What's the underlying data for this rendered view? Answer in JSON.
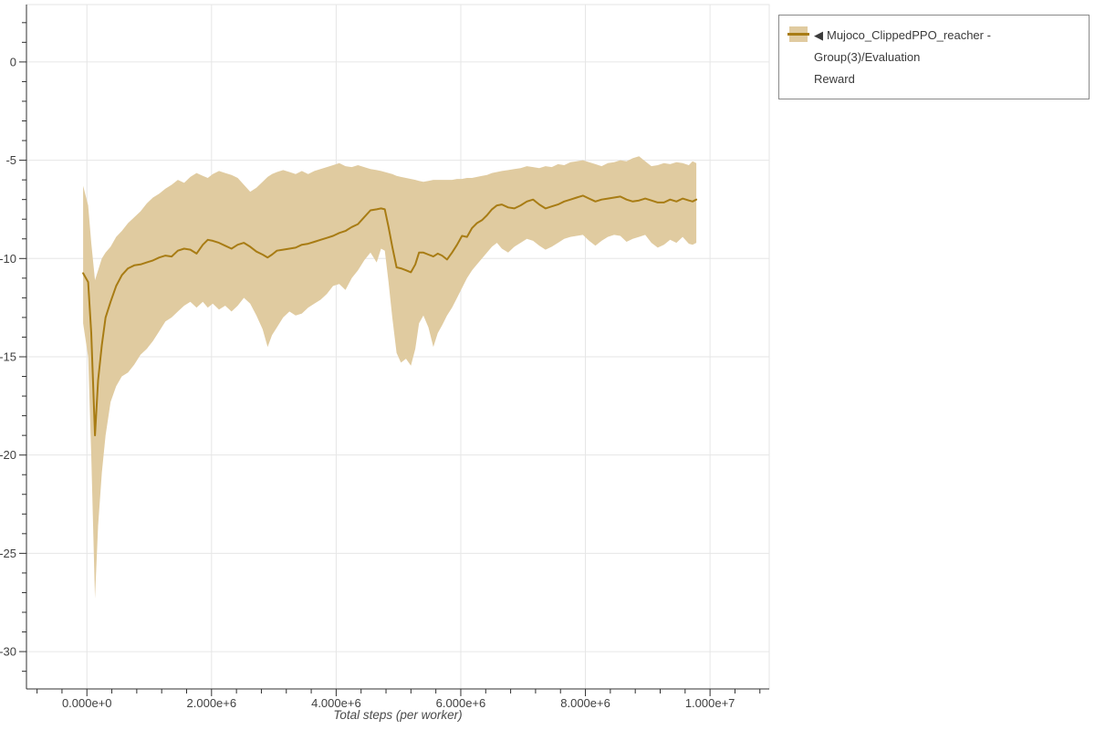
{
  "legend": {
    "toggle_glyph": "◀",
    "label": "Mujoco_ClippedPPO_reacher - Group(3)/Evaluation Reward",
    "label_line1": "Mujoco_ClippedPPO_reacher - Group(3)/Evaluation",
    "label_line2": "Reward"
  },
  "style": {
    "line_color": "#a87c14",
    "band_color": "#e0cba0",
    "grid_color": "#e6e6e6",
    "axis_color": "#303030",
    "tick_label_color": "#3f3f3f",
    "axis_label_color": "#4a4a4a",
    "legend_border_color": "#8a8a8a",
    "legend_text_color": "#3a3a3a",
    "background": "#ffffff"
  },
  "chart_data": {
    "type": "line",
    "title": "",
    "xlabel": "Total steps (per worker)",
    "ylabel": "",
    "legend_position": "top-right-outside",
    "grid": true,
    "series_name": "Mujoco_ClippedPPO_reacher - Group(3)/Evaluation Reward",
    "band_meaning": "min-max / std band around mean evaluation reward",
    "x_axis": {
      "range": [
        -970000,
        10950000
      ],
      "major_step": 2000000,
      "minor_step": 400000,
      "major_ticks": [
        {
          "value": 0,
          "label": "0.000e+0"
        },
        {
          "value": 2000000,
          "label": "2.000e+6"
        },
        {
          "value": 4000000,
          "label": "4.000e+6"
        },
        {
          "value": 6000000,
          "label": "6.000e+6"
        },
        {
          "value": 8000000,
          "label": "8.000e+6"
        },
        {
          "value": 10000000,
          "label": "1.000e+7"
        }
      ]
    },
    "y_axis": {
      "range": [
        -31.9,
        2.92
      ],
      "major_step": 5,
      "minor_step": 1,
      "major_ticks": [
        {
          "value": 0,
          "label": "0"
        },
        {
          "value": -5,
          "label": "-5"
        },
        {
          "value": -10,
          "label": "-10"
        },
        {
          "value": -15,
          "label": "-15"
        },
        {
          "value": -20,
          "label": "-20"
        },
        {
          "value": -25,
          "label": "-25"
        },
        {
          "value": -30,
          "label": "-30"
        }
      ]
    },
    "points_format": [
      "x_million_steps",
      "mean",
      "band_low",
      "band_high"
    ],
    "points": [
      [
        -0.06,
        -10.75,
        -13.3,
        -6.3
      ],
      [
        0.02,
        -11.2,
        -15.0,
        -7.3
      ],
      [
        0.07,
        -13.8,
        -20.0,
        -9.2
      ],
      [
        0.13,
        -19.0,
        -27.3,
        -11.1
      ],
      [
        0.18,
        -16.2,
        -23.6,
        -10.6
      ],
      [
        0.24,
        -14.4,
        -20.9,
        -10.0
      ],
      [
        0.3,
        -13.0,
        -19.0,
        -9.7
      ],
      [
        0.38,
        -12.2,
        -17.3,
        -9.4
      ],
      [
        0.47,
        -11.4,
        -16.5,
        -8.9
      ],
      [
        0.56,
        -10.85,
        -16.0,
        -8.6
      ],
      [
        0.66,
        -10.5,
        -15.8,
        -8.2
      ],
      [
        0.76,
        -10.35,
        -15.4,
        -7.9
      ],
      [
        0.86,
        -10.3,
        -14.9,
        -7.6
      ],
      [
        0.96,
        -10.2,
        -14.6,
        -7.2
      ],
      [
        1.06,
        -10.1,
        -14.2,
        -6.9
      ],
      [
        1.16,
        -9.95,
        -13.7,
        -6.7
      ],
      [
        1.26,
        -9.85,
        -13.2,
        -6.45
      ],
      [
        1.36,
        -9.9,
        -13.0,
        -6.25
      ],
      [
        1.46,
        -9.6,
        -12.7,
        -6.0
      ],
      [
        1.56,
        -9.5,
        -12.4,
        -6.15
      ],
      [
        1.66,
        -9.55,
        -12.2,
        -5.85
      ],
      [
        1.76,
        -9.75,
        -12.5,
        -5.65
      ],
      [
        1.86,
        -9.3,
        -12.2,
        -5.8
      ],
      [
        1.94,
        -9.05,
        -12.5,
        -5.9
      ],
      [
        2.02,
        -9.1,
        -12.3,
        -5.7
      ],
      [
        2.12,
        -9.2,
        -12.6,
        -5.55
      ],
      [
        2.22,
        -9.35,
        -12.4,
        -5.65
      ],
      [
        2.32,
        -9.5,
        -12.7,
        -5.75
      ],
      [
        2.42,
        -9.3,
        -12.4,
        -5.9
      ],
      [
        2.52,
        -9.2,
        -12.0,
        -6.25
      ],
      [
        2.62,
        -9.4,
        -12.3,
        -6.6
      ],
      [
        2.72,
        -9.65,
        -12.9,
        -6.4
      ],
      [
        2.82,
        -9.8,
        -13.6,
        -6.1
      ],
      [
        2.9,
        -9.95,
        -14.5,
        -5.85
      ],
      [
        2.97,
        -9.8,
        -13.9,
        -5.7
      ],
      [
        3.05,
        -9.6,
        -13.5,
        -5.6
      ],
      [
        3.15,
        -9.55,
        -13.0,
        -5.5
      ],
      [
        3.25,
        -9.5,
        -12.7,
        -5.6
      ],
      [
        3.35,
        -9.45,
        -12.9,
        -5.7
      ],
      [
        3.45,
        -9.3,
        -12.8,
        -5.55
      ],
      [
        3.55,
        -9.25,
        -12.5,
        -5.7
      ],
      [
        3.65,
        -9.15,
        -12.3,
        -5.55
      ],
      [
        3.75,
        -9.05,
        -12.1,
        -5.45
      ],
      [
        3.85,
        -8.95,
        -11.8,
        -5.35
      ],
      [
        3.95,
        -8.85,
        -11.4,
        -5.25
      ],
      [
        4.05,
        -8.7,
        -11.3,
        -5.15
      ],
      [
        4.15,
        -8.6,
        -11.6,
        -5.3
      ],
      [
        4.25,
        -8.4,
        -11.0,
        -5.35
      ],
      [
        4.35,
        -8.25,
        -10.6,
        -5.25
      ],
      [
        4.45,
        -7.9,
        -10.1,
        -5.35
      ],
      [
        4.55,
        -7.55,
        -9.7,
        -5.45
      ],
      [
        4.65,
        -7.5,
        -10.2,
        -5.5
      ],
      [
        4.72,
        -7.45,
        -9.5,
        -5.55
      ],
      [
        4.78,
        -7.5,
        -9.6,
        -5.6
      ],
      [
        4.84,
        -8.4,
        -11.2,
        -5.65
      ],
      [
        4.9,
        -9.4,
        -13.0,
        -5.7
      ],
      [
        4.97,
        -10.45,
        -14.8,
        -5.8
      ],
      [
        5.04,
        -10.5,
        -15.3,
        -5.85
      ],
      [
        5.12,
        -10.6,
        -15.1,
        -5.9
      ],
      [
        5.2,
        -10.7,
        -15.45,
        -5.95
      ],
      [
        5.27,
        -10.3,
        -14.6,
        -6.0
      ],
      [
        5.33,
        -9.7,
        -13.3,
        -6.05
      ],
      [
        5.4,
        -9.7,
        -12.9,
        -6.1
      ],
      [
        5.48,
        -9.8,
        -13.5,
        -6.05
      ],
      [
        5.56,
        -9.9,
        -14.5,
        -6.0
      ],
      [
        5.63,
        -9.75,
        -13.8,
        -6.0
      ],
      [
        5.7,
        -9.85,
        -13.4,
        -6.0
      ],
      [
        5.78,
        -10.05,
        -12.9,
        -6.0
      ],
      [
        5.86,
        -9.7,
        -12.5,
        -6.0
      ],
      [
        5.94,
        -9.3,
        -12.0,
        -5.95
      ],
      [
        6.02,
        -8.85,
        -11.5,
        -5.95
      ],
      [
        6.1,
        -8.9,
        -11.0,
        -5.9
      ],
      [
        6.18,
        -8.45,
        -10.6,
        -5.9
      ],
      [
        6.26,
        -8.2,
        -10.3,
        -5.85
      ],
      [
        6.34,
        -8.05,
        -10.0,
        -5.8
      ],
      [
        6.42,
        -7.8,
        -9.7,
        -5.75
      ],
      [
        6.5,
        -7.5,
        -9.4,
        -5.65
      ],
      [
        6.58,
        -7.3,
        -9.2,
        -5.6
      ],
      [
        6.66,
        -7.25,
        -9.5,
        -5.55
      ],
      [
        6.76,
        -7.4,
        -9.7,
        -5.5
      ],
      [
        6.86,
        -7.45,
        -9.4,
        -5.45
      ],
      [
        6.96,
        -7.3,
        -9.2,
        -5.4
      ],
      [
        7.06,
        -7.1,
        -9.0,
        -5.3
      ],
      [
        7.16,
        -7.0,
        -9.1,
        -5.35
      ],
      [
        7.26,
        -7.25,
        -9.35,
        -5.4
      ],
      [
        7.36,
        -7.45,
        -9.55,
        -5.3
      ],
      [
        7.46,
        -7.35,
        -9.4,
        -5.35
      ],
      [
        7.56,
        -7.25,
        -9.2,
        -5.2
      ],
      [
        7.66,
        -7.1,
        -9.0,
        -5.25
      ],
      [
        7.76,
        -7.0,
        -8.9,
        -5.1
      ],
      [
        7.86,
        -6.9,
        -8.85,
        -5.05
      ],
      [
        7.96,
        -6.8,
        -8.8,
        -5.0
      ],
      [
        8.06,
        -6.95,
        -9.1,
        -5.1
      ],
      [
        8.16,
        -7.1,
        -9.35,
        -5.2
      ],
      [
        8.26,
        -7.0,
        -9.1,
        -5.3
      ],
      [
        8.36,
        -6.95,
        -8.9,
        -5.15
      ],
      [
        8.46,
        -6.9,
        -8.8,
        -5.1
      ],
      [
        8.56,
        -6.85,
        -8.85,
        -5.0
      ],
      [
        8.66,
        -7.0,
        -9.15,
        -5.05
      ],
      [
        8.76,
        -7.1,
        -9.0,
        -4.9
      ],
      [
        8.86,
        -7.05,
        -8.9,
        -4.8
      ],
      [
        8.96,
        -6.95,
        -8.8,
        -5.05
      ],
      [
        9.06,
        -7.05,
        -9.2,
        -5.3
      ],
      [
        9.16,
        -7.15,
        -9.45,
        -5.25
      ],
      [
        9.26,
        -7.15,
        -9.3,
        -5.15
      ],
      [
        9.36,
        -7.0,
        -9.05,
        -5.2
      ],
      [
        9.46,
        -7.1,
        -9.2,
        -5.1
      ],
      [
        9.56,
        -6.95,
        -8.9,
        -5.15
      ],
      [
        9.66,
        -7.05,
        -9.25,
        -5.25
      ],
      [
        9.72,
        -7.1,
        -9.3,
        -5.05
      ],
      [
        9.78,
        -7.0,
        -9.2,
        -5.15
      ]
    ]
  }
}
